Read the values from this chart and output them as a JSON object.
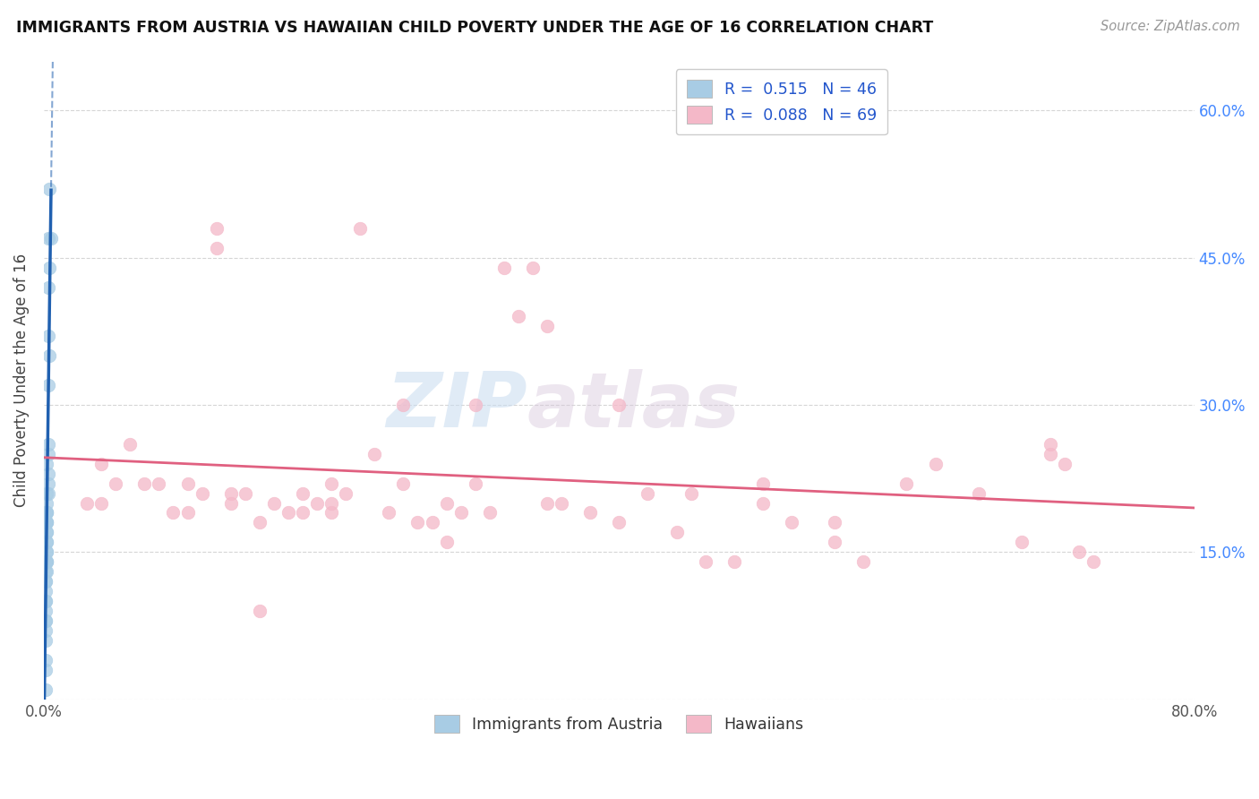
{
  "title": "IMMIGRANTS FROM AUSTRIA VS HAWAIIAN CHILD POVERTY UNDER THE AGE OF 16 CORRELATION CHART",
  "source": "Source: ZipAtlas.com",
  "ylabel": "Child Poverty Under the Age of 16",
  "xlim": [
    0,
    0.8
  ],
  "ylim": [
    0,
    0.65
  ],
  "xtick_positions": [
    0.0,
    0.1,
    0.2,
    0.3,
    0.4,
    0.5,
    0.6,
    0.7,
    0.8
  ],
  "xticklabels": [
    "0.0%",
    "",
    "",
    "",
    "",
    "",
    "",
    "",
    "80.0%"
  ],
  "ytick_positions": [
    0.0,
    0.15,
    0.3,
    0.45,
    0.6
  ],
  "ytick_labels_right": [
    "",
    "15.0%",
    "30.0%",
    "45.0%",
    "60.0%"
  ],
  "color_blue": "#a8cce4",
  "color_pink": "#f4b8c8",
  "color_blue_line": "#2060b0",
  "color_pink_line": "#e06080",
  "austria_x": [
    0.004,
    0.003,
    0.005,
    0.004,
    0.003,
    0.003,
    0.004,
    0.003,
    0.003,
    0.003,
    0.002,
    0.003,
    0.003,
    0.003,
    0.002,
    0.002,
    0.002,
    0.002,
    0.002,
    0.002,
    0.002,
    0.002,
    0.002,
    0.002,
    0.002,
    0.002,
    0.002,
    0.002,
    0.002,
    0.002,
    0.002,
    0.002,
    0.001,
    0.001,
    0.001,
    0.001,
    0.001,
    0.001,
    0.001,
    0.001,
    0.001,
    0.001,
    0.001,
    0.001,
    0.001,
    0.001
  ],
  "austria_y": [
    0.52,
    0.47,
    0.47,
    0.44,
    0.42,
    0.37,
    0.35,
    0.32,
    0.26,
    0.25,
    0.24,
    0.23,
    0.22,
    0.21,
    0.21,
    0.2,
    0.19,
    0.19,
    0.19,
    0.18,
    0.18,
    0.18,
    0.17,
    0.17,
    0.16,
    0.16,
    0.15,
    0.15,
    0.14,
    0.14,
    0.14,
    0.13,
    0.13,
    0.12,
    0.12,
    0.11,
    0.1,
    0.1,
    0.09,
    0.08,
    0.08,
    0.07,
    0.06,
    0.04,
    0.03,
    0.01
  ],
  "hawaiian_x": [
    0.03,
    0.04,
    0.04,
    0.05,
    0.06,
    0.07,
    0.08,
    0.09,
    0.1,
    0.1,
    0.11,
    0.12,
    0.12,
    0.13,
    0.13,
    0.14,
    0.15,
    0.16,
    0.17,
    0.18,
    0.18,
    0.19,
    0.2,
    0.2,
    0.21,
    0.22,
    0.23,
    0.24,
    0.25,
    0.26,
    0.27,
    0.28,
    0.28,
    0.29,
    0.3,
    0.31,
    0.32,
    0.33,
    0.34,
    0.35,
    0.36,
    0.38,
    0.4,
    0.42,
    0.44,
    0.46,
    0.48,
    0.5,
    0.52,
    0.55,
    0.57,
    0.6,
    0.62,
    0.65,
    0.68,
    0.7,
    0.72,
    0.15,
    0.2,
    0.25,
    0.3,
    0.35,
    0.4,
    0.45,
    0.5,
    0.55,
    0.7,
    0.71,
    0.73
  ],
  "hawaiian_y": [
    0.2,
    0.24,
    0.2,
    0.22,
    0.26,
    0.22,
    0.22,
    0.19,
    0.22,
    0.19,
    0.21,
    0.48,
    0.46,
    0.21,
    0.2,
    0.21,
    0.18,
    0.2,
    0.19,
    0.21,
    0.19,
    0.2,
    0.22,
    0.19,
    0.21,
    0.48,
    0.25,
    0.19,
    0.22,
    0.18,
    0.18,
    0.16,
    0.2,
    0.19,
    0.22,
    0.19,
    0.44,
    0.39,
    0.44,
    0.38,
    0.2,
    0.19,
    0.18,
    0.21,
    0.17,
    0.14,
    0.14,
    0.22,
    0.18,
    0.16,
    0.14,
    0.22,
    0.24,
    0.21,
    0.16,
    0.26,
    0.15,
    0.09,
    0.2,
    0.3,
    0.3,
    0.2,
    0.3,
    0.21,
    0.2,
    0.18,
    0.25,
    0.24,
    0.14
  ],
  "watermark_zip": "ZIP",
  "watermark_atlas": "atlas",
  "background_color": "#ffffff",
  "grid_color": "#cccccc",
  "r_blue": "0.515",
  "n_blue": "46",
  "r_pink": "0.088",
  "n_pink": "69"
}
